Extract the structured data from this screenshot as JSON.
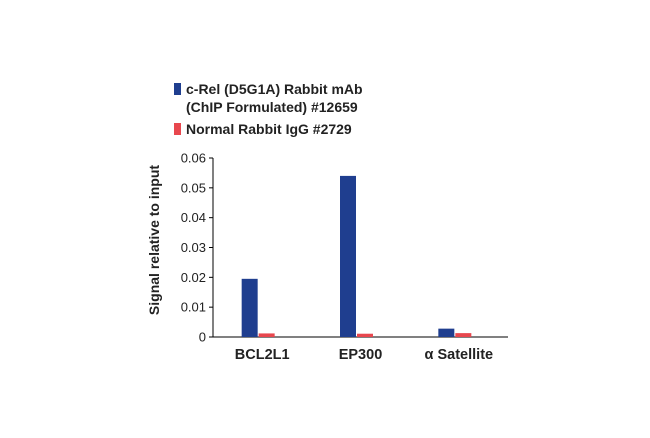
{
  "chart_data": {
    "type": "bar",
    "title": "",
    "xlabel": "",
    "ylabel": "Signal relative to input",
    "ylim": [
      0,
      0.06
    ],
    "yticks": [
      "0",
      "0.01",
      "0.02",
      "0.03",
      "0.04",
      "0.05",
      "0.06"
    ],
    "categories": [
      "BCL2L1",
      "EP300",
      "α Satellite"
    ],
    "legend": {
      "placement": "top",
      "entries": [
        {
          "lines": [
            "c-Rel (D5G1A) Rabbit mAb",
            "(ChIP Formulated) #12659"
          ],
          "color": "#1f3e8f"
        },
        {
          "lines": [
            "Normal Rabbit IgG #2729"
          ],
          "color": "#e8474e"
        }
      ]
    },
    "series": [
      {
        "name": "c-Rel (D5G1A) Rabbit mAb (ChIP Formulated) #12659",
        "color": "#1f3e8f",
        "values": [
          0.0195,
          0.054,
          0.0028
        ]
      },
      {
        "name": "Normal Rabbit IgG #2729",
        "color": "#e8474e",
        "values": [
          0.0012,
          0.0011,
          0.0013
        ]
      }
    ]
  }
}
